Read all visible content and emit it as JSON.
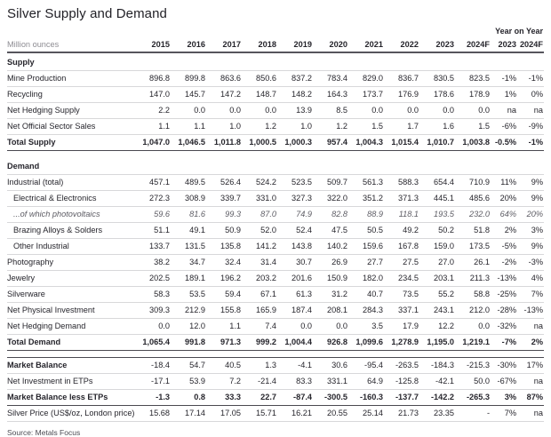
{
  "title": "Silver Supply and Demand",
  "units_label": "Million ounces",
  "yoy_label": "Year on Year",
  "source": "Source: Metals Focus",
  "colors": {
    "text": "#26252c",
    "muted_text": "#8e8d93",
    "light_rule": "#d8d8da",
    "dark_rule": "#4a4950"
  },
  "columns": [
    "2015",
    "2016",
    "2017",
    "2018",
    "2019",
    "2020",
    "2021",
    "2022",
    "2023",
    "2024F"
  ],
  "yoy_columns": [
    "2023",
    "2024F"
  ],
  "sections": [
    {
      "header": "Supply",
      "rows": [
        {
          "label": "Mine Production",
          "variant": "normal",
          "values": [
            "896.8",
            "899.8",
            "863.6",
            "850.6",
            "837.2",
            "783.4",
            "829.0",
            "836.7",
            "830.5",
            "823.5"
          ],
          "yoy": [
            "-1%",
            "-1%"
          ]
        },
        {
          "label": "Recycling",
          "variant": "normal",
          "values": [
            "147.0",
            "145.7",
            "147.2",
            "148.7",
            "148.2",
            "164.3",
            "173.7",
            "176.9",
            "178.6",
            "178.9"
          ],
          "yoy": [
            "1%",
            "0%"
          ]
        },
        {
          "label": "Net Hedging Supply",
          "variant": "normal",
          "values": [
            "2.2",
            "0.0",
            "0.0",
            "0.0",
            "13.9",
            "8.5",
            "0.0",
            "0.0",
            "0.0",
            "0.0"
          ],
          "yoy": [
            "na",
            "na"
          ]
        },
        {
          "label": "Net Official Sector Sales",
          "variant": "normal",
          "values": [
            "1.1",
            "1.1",
            "1.0",
            "1.2",
            "1.0",
            "1.2",
            "1.5",
            "1.7",
            "1.6",
            "1.5"
          ],
          "yoy": [
            "-6%",
            "-9%"
          ]
        },
        {
          "label": "Total Supply",
          "variant": "total",
          "values": [
            "1,047.0",
            "1,046.5",
            "1,011.8",
            "1,000.5",
            "1,000.3",
            "957.4",
            "1,004.3",
            "1,015.4",
            "1,010.7",
            "1,003.8"
          ],
          "yoy": [
            "-0.5%",
            "-1%"
          ]
        }
      ]
    },
    {
      "header": "Demand",
      "rows": [
        {
          "label": "Industrial (total)",
          "variant": "normal",
          "values": [
            "457.1",
            "489.5",
            "526.4",
            "524.2",
            "523.5",
            "509.7",
            "561.3",
            "588.3",
            "654.4",
            "710.9"
          ],
          "yoy": [
            "11%",
            "9%"
          ]
        },
        {
          "label": "Electrical & Electronics",
          "variant": "sub",
          "values": [
            "272.3",
            "308.9",
            "339.7",
            "331.0",
            "327.3",
            "322.0",
            "351.2",
            "371.3",
            "445.1",
            "485.6"
          ],
          "yoy": [
            "20%",
            "9%"
          ]
        },
        {
          "label": "...of which photovoltaics",
          "variant": "subitalic",
          "values": [
            "59.6",
            "81.6",
            "99.3",
            "87.0",
            "74.9",
            "82.8",
            "88.9",
            "118.1",
            "193.5",
            "232.0"
          ],
          "yoy": [
            "64%",
            "20%"
          ]
        },
        {
          "label": "Brazing Alloys & Solders",
          "variant": "sub",
          "values": [
            "51.1",
            "49.1",
            "50.9",
            "52.0",
            "52.4",
            "47.5",
            "50.5",
            "49.2",
            "50.2",
            "51.8"
          ],
          "yoy": [
            "2%",
            "3%"
          ]
        },
        {
          "label": "Other Industrial",
          "variant": "sub",
          "values": [
            "133.7",
            "131.5",
            "135.8",
            "141.2",
            "143.8",
            "140.2",
            "159.6",
            "167.8",
            "159.0",
            "173.5"
          ],
          "yoy": [
            "-5%",
            "9%"
          ]
        },
        {
          "label": "Photography",
          "variant": "normal",
          "values": [
            "38.2",
            "34.7",
            "32.4",
            "31.4",
            "30.7",
            "26.9",
            "27.7",
            "27.5",
            "27.0",
            "26.1"
          ],
          "yoy": [
            "-2%",
            "-3%"
          ]
        },
        {
          "label": "Jewelry",
          "variant": "normal",
          "values": [
            "202.5",
            "189.1",
            "196.2",
            "203.2",
            "201.6",
            "150.9",
            "182.0",
            "234.5",
            "203.1",
            "211.3"
          ],
          "yoy": [
            "-13%",
            "4%"
          ]
        },
        {
          "label": "Silverware",
          "variant": "normal",
          "values": [
            "58.3",
            "53.5",
            "59.4",
            "67.1",
            "61.3",
            "31.2",
            "40.7",
            "73.5",
            "55.2",
            "58.8"
          ],
          "yoy": [
            "-25%",
            "7%"
          ]
        },
        {
          "label": "Net Physical Investment",
          "variant": "normal",
          "values": [
            "309.3",
            "212.9",
            "155.8",
            "165.9",
            "187.4",
            "208.1",
            "284.3",
            "337.1",
            "243.1",
            "212.0"
          ],
          "yoy": [
            "-28%",
            "-13%"
          ]
        },
        {
          "label": "Net Hedging Demand",
          "variant": "normal",
          "values": [
            "0.0",
            "12.0",
            "1.1",
            "7.4",
            "0.0",
            "0.0",
            "3.5",
            "17.9",
            "12.2",
            "0.0"
          ],
          "yoy": [
            "-32%",
            "na"
          ]
        },
        {
          "label": "Total Demand",
          "variant": "total",
          "values": [
            "1,065.4",
            "991.8",
            "971.3",
            "999.2",
            "1,004.4",
            "926.8",
            "1,099.6",
            "1,278.9",
            "1,195.0",
            "1,219.1"
          ],
          "yoy": [
            "-7%",
            "2%"
          ]
        }
      ]
    },
    {
      "header": null,
      "rows": [
        {
          "label": "Market Balance",
          "variant": "boldlabel",
          "values": [
            "-18.4",
            "54.7",
            "40.5",
            "1.3",
            "-4.1",
            "30.6",
            "-95.4",
            "-263.5",
            "-184.3",
            "-215.3"
          ],
          "yoy": [
            "-30%",
            "17%"
          ]
        },
        {
          "label": "Net Investment in ETPs",
          "variant": "normal",
          "values": [
            "-17.1",
            "53.9",
            "7.2",
            "-21.4",
            "83.3",
            "331.1",
            "64.9",
            "-125.8",
            "-42.1",
            "50.0"
          ],
          "yoy": [
            "-67%",
            "na"
          ]
        },
        {
          "label": "Market Balance less ETPs",
          "variant": "total",
          "values": [
            "-1.3",
            "0.8",
            "33.3",
            "22.7",
            "-87.4",
            "-300.5",
            "-160.3",
            "-137.7",
            "-142.2",
            "-265.3"
          ],
          "yoy": [
            "3%",
            "87%"
          ]
        },
        {
          "label": "Silver Price (US$/oz, London price)",
          "variant": "normal",
          "values": [
            "15.68",
            "17.14",
            "17.05",
            "15.71",
            "16.21",
            "20.55",
            "25.14",
            "21.73",
            "23.35",
            "-"
          ],
          "yoy": [
            "7%",
            "na"
          ]
        }
      ]
    }
  ]
}
